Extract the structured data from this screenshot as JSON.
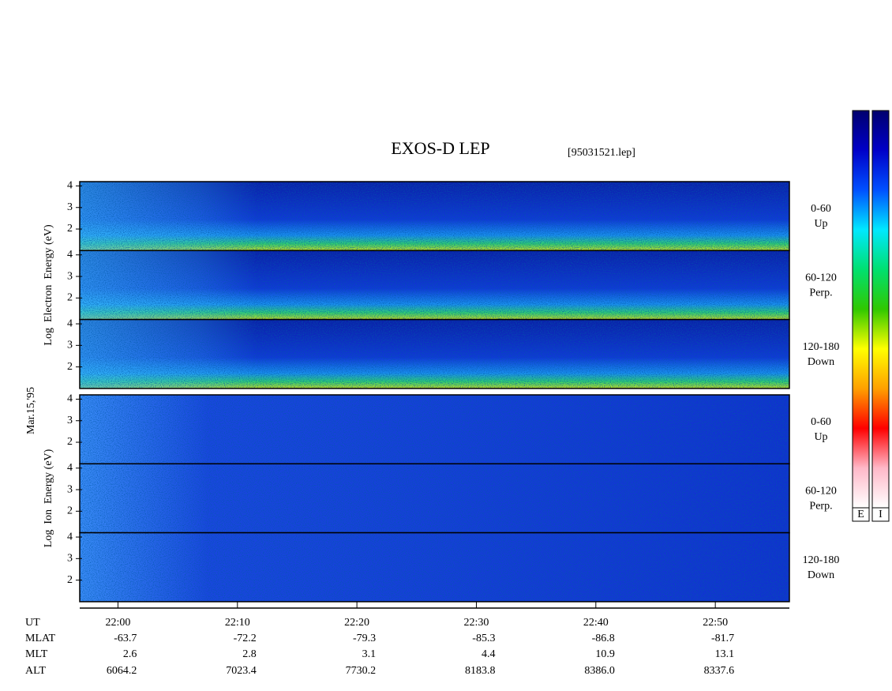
{
  "chart_data": {
    "type": "spectrogram",
    "title": "EXOS-D LEP",
    "subtitle": "[95031521.lep]",
    "date_label": "Mar.15,'95",
    "ylim": [
      1,
      4.2
    ],
    "yticks": [
      2,
      3,
      4
    ],
    "xlim": [
      1316.8,
      1376.2
    ],
    "xticks": [
      {
        "value": 1320,
        "label": "22:00"
      },
      {
        "value": 1330,
        "label": "22:10"
      },
      {
        "value": 1340,
        "label": "22:20"
      },
      {
        "value": 1350,
        "label": "22:30"
      },
      {
        "value": 1360,
        "label": "22:40"
      },
      {
        "value": 1370,
        "label": "22:50"
      }
    ],
    "groups": [
      {
        "ylabel": "Log  Electron  Energy (eV)",
        "species": "electron",
        "panels": [
          {
            "pitch": "0-60",
            "direction": "Up"
          },
          {
            "pitch": "60-120",
            "direction": "Perp."
          },
          {
            "pitch": "120-180",
            "direction": "Down"
          }
        ]
      },
      {
        "ylabel": "Log  Ion  Energy (eV)",
        "species": "ion",
        "panels": [
          {
            "pitch": "0-60",
            "direction": "Up"
          },
          {
            "pitch": "60-120",
            "direction": "Perp."
          },
          {
            "pitch": "120-180",
            "direction": "Down"
          }
        ]
      }
    ],
    "ephemeris": {
      "labels": [
        "UT",
        "MLAT",
        "MLT",
        "ALT"
      ],
      "rows": [
        [
          "-63.7",
          "-72.2",
          "-79.3",
          "-85.3",
          "-86.8",
          "-81.7"
        ],
        [
          "2.6",
          "2.8",
          "3.1",
          "4.4",
          "10.9",
          "13.1"
        ],
        [
          "6064.2",
          "7023.4",
          "7730.2",
          "8183.8",
          "8386.0",
          "8337.6"
        ]
      ]
    },
    "colorbar": {
      "labels": [
        "E",
        "I"
      ],
      "colors": [
        "#00006e",
        "#0000c8",
        "#0050ff",
        "#00e8ff",
        "#00e070",
        "#30c800",
        "#ffff00",
        "#ffa000",
        "#ff0000",
        "#ffb8c8",
        "#ffffff"
      ]
    }
  }
}
